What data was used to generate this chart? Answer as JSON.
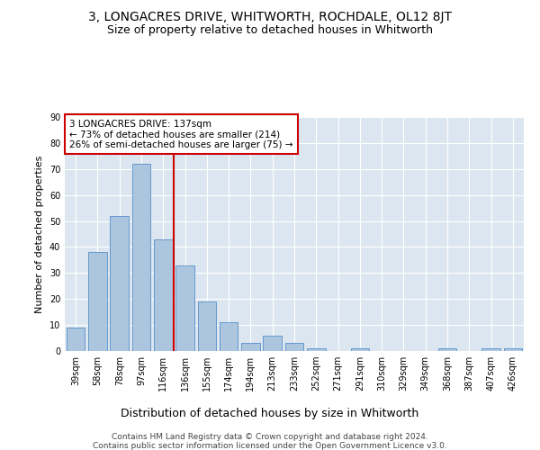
{
  "title1": "3, LONGACRES DRIVE, WHITWORTH, ROCHDALE, OL12 8JT",
  "title2": "Size of property relative to detached houses in Whitworth",
  "xlabel": "Distribution of detached houses by size in Whitworth",
  "ylabel": "Number of detached properties",
  "categories": [
    "39sqm",
    "58sqm",
    "78sqm",
    "97sqm",
    "116sqm",
    "136sqm",
    "155sqm",
    "174sqm",
    "194sqm",
    "213sqm",
    "233sqm",
    "252sqm",
    "271sqm",
    "291sqm",
    "310sqm",
    "329sqm",
    "349sqm",
    "368sqm",
    "387sqm",
    "407sqm",
    "426sqm"
  ],
  "values": [
    9,
    38,
    52,
    72,
    43,
    33,
    19,
    11,
    3,
    6,
    3,
    1,
    0,
    1,
    0,
    0,
    0,
    1,
    0,
    1,
    1
  ],
  "bar_color": "#adc6e0",
  "bar_edge_color": "#6699cc",
  "vline_x_idx": 5,
  "vline_color": "#cc0000",
  "annotation_text": "3 LONGACRES DRIVE: 137sqm\n← 73% of detached houses are smaller (214)\n26% of semi-detached houses are larger (75) →",
  "annotation_box_color": "#cc0000",
  "annotation_fontsize": 7.5,
  "ylim": [
    0,
    90
  ],
  "yticks": [
    0,
    10,
    20,
    30,
    40,
    50,
    60,
    70,
    80,
    90
  ],
  "plot_background": "#dce6f0",
  "footer_text": "Contains HM Land Registry data © Crown copyright and database right 2024.\nContains public sector information licensed under the Open Government Licence v3.0.",
  "title1_fontsize": 10,
  "title2_fontsize": 9,
  "xlabel_fontsize": 9,
  "ylabel_fontsize": 8,
  "footer_fontsize": 6.5,
  "tick_labelsize": 7
}
